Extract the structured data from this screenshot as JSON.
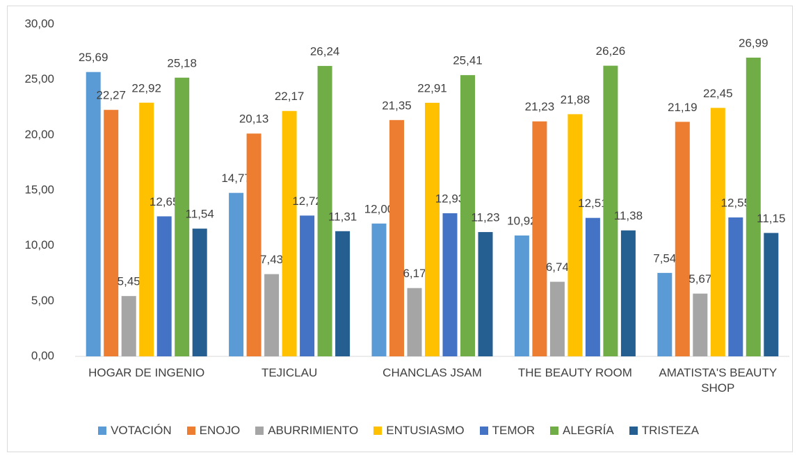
{
  "chart_data": {
    "type": "bar",
    "categories": [
      "HOGAR DE INGENIO",
      "TEJICLAU",
      "CHANCLAS JSAM",
      "THE BEAUTY ROOM",
      "AMATISTA'S BEAUTY SHOP"
    ],
    "series": [
      {
        "name": "VOTACIÓN",
        "color": "#5b9bd5",
        "values": [
          25.69,
          14.77,
          12.0,
          10.92,
          7.54
        ],
        "value_labels": [
          "25,69",
          "14,77",
          "12,00",
          "10,92",
          "7,54"
        ]
      },
      {
        "name": "ENOJO",
        "color": "#ed7d31",
        "values": [
          22.27,
          20.13,
          21.35,
          21.23,
          21.19
        ],
        "value_labels": [
          "22,27",
          "20,13",
          "21,35",
          "21,23",
          "21,19"
        ]
      },
      {
        "name": "ABURRIMIENTO",
        "color": "#a5a5a5",
        "values": [
          5.45,
          7.43,
          6.17,
          6.74,
          5.67
        ],
        "value_labels": [
          "5,45",
          "7,43",
          "6,17",
          "6,74",
          "5,67"
        ]
      },
      {
        "name": "ENTUSIASMO",
        "color": "#ffc000",
        "values": [
          22.92,
          22.17,
          22.91,
          21.88,
          22.45
        ],
        "value_labels": [
          "22,92",
          "22,17",
          "22,91",
          "21,88",
          "22,45"
        ]
      },
      {
        "name": "TEMOR",
        "color": "#4472c4",
        "values": [
          12.65,
          12.72,
          12.93,
          12.51,
          12.55
        ],
        "value_labels": [
          "12,65",
          "12,72",
          "12,93",
          "12,51",
          "12,55"
        ]
      },
      {
        "name": "ALEGRÍA",
        "color": "#70ad47",
        "values": [
          25.18,
          26.24,
          25.41,
          26.26,
          26.99
        ],
        "value_labels": [
          "25,18",
          "26,24",
          "25,41",
          "26,26",
          "26,99"
        ]
      },
      {
        "name": "TRISTEZA",
        "color": "#255e91",
        "values": [
          11.54,
          11.31,
          11.23,
          11.38,
          11.15
        ],
        "value_labels": [
          "11,54",
          "11,31",
          "11,23",
          "11,38",
          "11,15"
        ]
      }
    ],
    "ylim": [
      0,
      30
    ],
    "yticks": [
      {
        "value": 0,
        "label": "0,00"
      },
      {
        "value": 5,
        "label": "5,00"
      },
      {
        "value": 10,
        "label": "10,00"
      },
      {
        "value": 15,
        "label": "15,00"
      },
      {
        "value": 20,
        "label": "20,00"
      },
      {
        "value": 25,
        "label": "25,00"
      },
      {
        "value": 30,
        "label": "30,00"
      }
    ],
    "grid": false,
    "legend": "bottom"
  }
}
